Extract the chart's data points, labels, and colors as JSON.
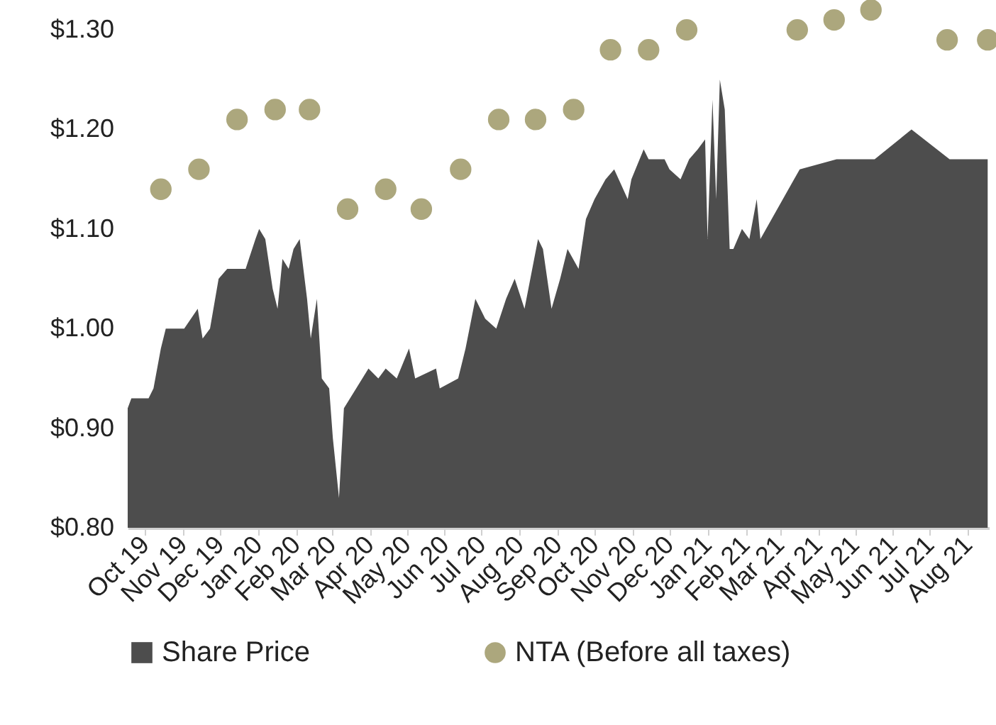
{
  "chart_data": {
    "type": "area",
    "legend": "bottom",
    "xlim": [
      "2019-10-01",
      "2021-09-01"
    ],
    "xticks": [
      {
        "value": "2019-10-15",
        "label": "Oct 19"
      },
      {
        "value": "2019-11-15",
        "label": "Nov 19"
      },
      {
        "value": "2019-12-15",
        "label": "Dec 19"
      },
      {
        "value": "2020-01-15",
        "label": "Jan 20"
      },
      {
        "value": "2020-02-15",
        "label": "Feb 20"
      },
      {
        "value": "2020-03-15",
        "label": "Mar 20"
      },
      {
        "value": "2020-04-15",
        "label": "Apr 20"
      },
      {
        "value": "2020-05-15",
        "label": "May 20"
      },
      {
        "value": "2020-06-15",
        "label": "Jun 20"
      },
      {
        "value": "2020-07-15",
        "label": "Jul 20"
      },
      {
        "value": "2020-08-15",
        "label": "Aug 20"
      },
      {
        "value": "2020-09-15",
        "label": "Sep 20"
      },
      {
        "value": "2020-10-15",
        "label": "Oct 20"
      },
      {
        "value": "2020-11-15",
        "label": "Nov 20"
      },
      {
        "value": "2020-12-15",
        "label": "Dec 20"
      },
      {
        "value": "2021-01-15",
        "label": "Jan 21"
      },
      {
        "value": "2021-02-15",
        "label": "Feb 21"
      },
      {
        "value": "2021-03-15",
        "label": "Mar 21"
      },
      {
        "value": "2021-04-15",
        "label": "Apr 21"
      },
      {
        "value": "2021-05-15",
        "label": "May 21"
      },
      {
        "value": "2021-06-15",
        "label": "Jun 21"
      },
      {
        "value": "2021-07-15",
        "label": "Jul 21"
      },
      {
        "value": "2021-08-15",
        "label": "Aug 21"
      }
    ],
    "ylim": [
      0.8,
      1.33
    ],
    "yticks": [
      {
        "value": 0.8,
        "label": "$0.80"
      },
      {
        "value": 0.9,
        "label": "$0.90"
      },
      {
        "value": 1.0,
        "label": "$1.00"
      },
      {
        "value": 1.1,
        "label": "$1.10"
      },
      {
        "value": 1.2,
        "label": "$1.20"
      },
      {
        "value": 1.3,
        "label": "$1.30"
      }
    ],
    "series": [
      {
        "name": "Share Price",
        "color": "#4d4d4d",
        "x": [
          "2019-10-01",
          "2019-10-04",
          "2019-10-18",
          "2019-10-22",
          "2019-10-28",
          "2019-11-01",
          "2019-11-16",
          "2019-11-27",
          "2019-12-01",
          "2019-12-07",
          "2019-12-14",
          "2019-12-21",
          "2020-01-05",
          "2020-01-13",
          "2020-01-16",
          "2020-01-21",
          "2020-01-27",
          "2020-01-31",
          "2020-02-04",
          "2020-02-09",
          "2020-02-13",
          "2020-02-18",
          "2020-02-24",
          "2020-02-27",
          "2020-03-03",
          "2020-03-07",
          "2020-03-13",
          "2020-03-16",
          "2020-03-21",
          "2020-03-25",
          "2020-03-30",
          "2020-04-14",
          "2020-04-22",
          "2020-04-28",
          "2020-05-07",
          "2020-05-17",
          "2020-05-22",
          "2020-06-08",
          "2020-06-11",
          "2020-06-26",
          "2020-07-02",
          "2020-07-10",
          "2020-07-18",
          "2020-07-27",
          "2020-08-04",
          "2020-08-11",
          "2020-08-19",
          "2020-08-30",
          "2020-09-03",
          "2020-09-10",
          "2020-09-17",
          "2020-09-23",
          "2020-10-02",
          "2020-10-08",
          "2020-10-15",
          "2020-10-24",
          "2020-10-31",
          "2020-11-11",
          "2020-11-14",
          "2020-11-24",
          "2020-11-28",
          "2020-12-11",
          "2020-12-15",
          "2020-12-24",
          "2020-12-31",
          "2021-01-07",
          "2021-01-13",
          "2021-01-15",
          "2021-01-19",
          "2021-01-22",
          "2021-01-25",
          "2021-01-29",
          "2021-02-02",
          "2021-02-05",
          "2021-02-12",
          "2021-02-18",
          "2021-02-24",
          "2021-02-27",
          "2021-03-31",
          "2021-04-30",
          "2021-05-31",
          "2021-06-30",
          "2021-07-31",
          "2021-08-31"
        ],
        "values": [
          0.92,
          0.93,
          0.93,
          0.94,
          0.98,
          1.0,
          1.0,
          1.02,
          0.99,
          1.0,
          1.05,
          1.06,
          1.06,
          1.09,
          1.1,
          1.09,
          1.04,
          1.02,
          1.07,
          1.06,
          1.08,
          1.09,
          1.03,
          0.99,
          1.03,
          0.95,
          0.94,
          0.89,
          0.83,
          0.92,
          0.93,
          0.96,
          0.95,
          0.96,
          0.95,
          0.98,
          0.95,
          0.96,
          0.94,
          0.95,
          0.98,
          1.03,
          1.01,
          1.0,
          1.03,
          1.05,
          1.02,
          1.09,
          1.08,
          1.02,
          1.05,
          1.08,
          1.06,
          1.11,
          1.13,
          1.15,
          1.16,
          1.13,
          1.15,
          1.18,
          1.17,
          1.17,
          1.16,
          1.15,
          1.17,
          1.18,
          1.19,
          1.09,
          1.23,
          1.13,
          1.25,
          1.22,
          1.08,
          1.08,
          1.1,
          1.09,
          1.13,
          1.09,
          1.16,
          1.17,
          1.17,
          1.2,
          1.17,
          1.17
        ]
      },
      {
        "name": "NTA (Before all taxes)",
        "type": "scatter",
        "marker": "circle",
        "color": "#aca77d",
        "x": [
          "2019-10-28",
          "2019-11-28",
          "2019-12-29",
          "2020-01-29",
          "2020-02-26",
          "2020-03-28",
          "2020-04-28",
          "2020-05-27",
          "2020-06-28",
          "2020-07-29",
          "2020-08-28",
          "2020-09-28",
          "2020-10-28",
          "2020-11-28",
          "2020-12-29",
          "2021-03-29",
          "2021-04-28",
          "2021-05-28",
          "2021-07-29",
          "2021-08-31"
        ],
        "values": [
          1.14,
          1.16,
          1.21,
          1.22,
          1.22,
          1.12,
          1.14,
          1.12,
          1.16,
          1.21,
          1.21,
          1.22,
          1.28,
          1.28,
          1.3,
          1.3,
          1.31,
          1.32,
          1.29,
          1.29
        ]
      }
    ]
  }
}
